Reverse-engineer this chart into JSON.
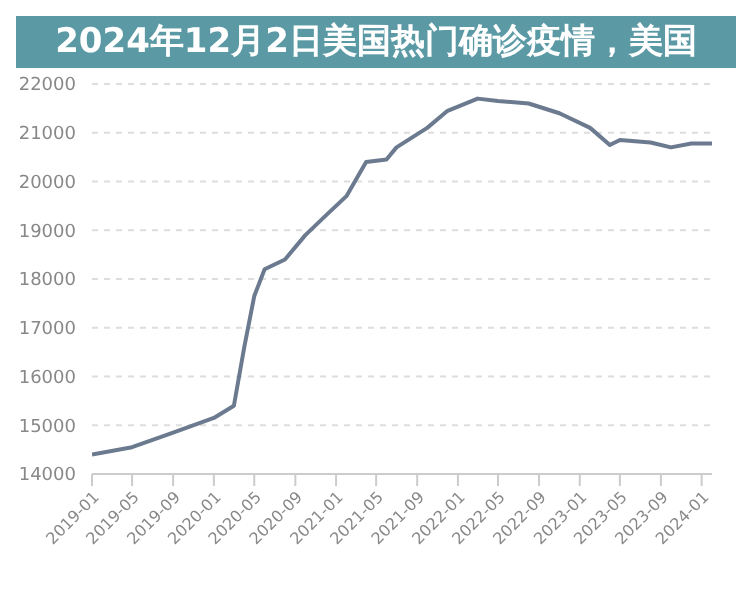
{
  "chart_data": {
    "type": "line",
    "title": "2024年12月2日美国热门确诊疫情，美国",
    "x": [
      "2019-01",
      "2019-05",
      "2019-09",
      "2020-01",
      "2020-03",
      "2020-04",
      "2020-05",
      "2020-06",
      "2020-08",
      "2020-10",
      "2020-12",
      "2021-02",
      "2021-04",
      "2021-06",
      "2021-07",
      "2021-10",
      "2021-12",
      "2022-03",
      "2022-05",
      "2022-08",
      "2022-11",
      "2023-02",
      "2023-04",
      "2023-05",
      "2023-08",
      "2023-10",
      "2023-12",
      "2024-02"
    ],
    "series": [
      {
        "color": "#6b7a8f",
        "values": [
          14400,
          14550,
          14850,
          15150,
          15400,
          16600,
          17650,
          18200,
          18400,
          18900,
          19300,
          19700,
          20400,
          20450,
          20700,
          21100,
          21450,
          21700,
          21650,
          21600,
          21400,
          21100,
          20750,
          20850,
          20800,
          20700,
          20780,
          20780
        ]
      }
    ],
    "xlim": [
      "2019-01",
      "2024-02"
    ],
    "xticks": [
      "2019-01",
      "2019-05",
      "2019-09",
      "2020-01",
      "2020-05",
      "2020-09",
      "2021-01",
      "2021-05",
      "2021-09",
      "2022-01",
      "2022-05",
      "2022-09",
      "2023-01",
      "2023-05",
      "2023-09",
      "2024-01"
    ],
    "ylim": [
      14000,
      22000
    ],
    "yticks": [
      14000,
      15000,
      16000,
      17000,
      18000,
      19000,
      20000,
      21000,
      22000
    ],
    "grid": "y",
    "marker": "none",
    "line_style": "solid",
    "legend": false
  }
}
